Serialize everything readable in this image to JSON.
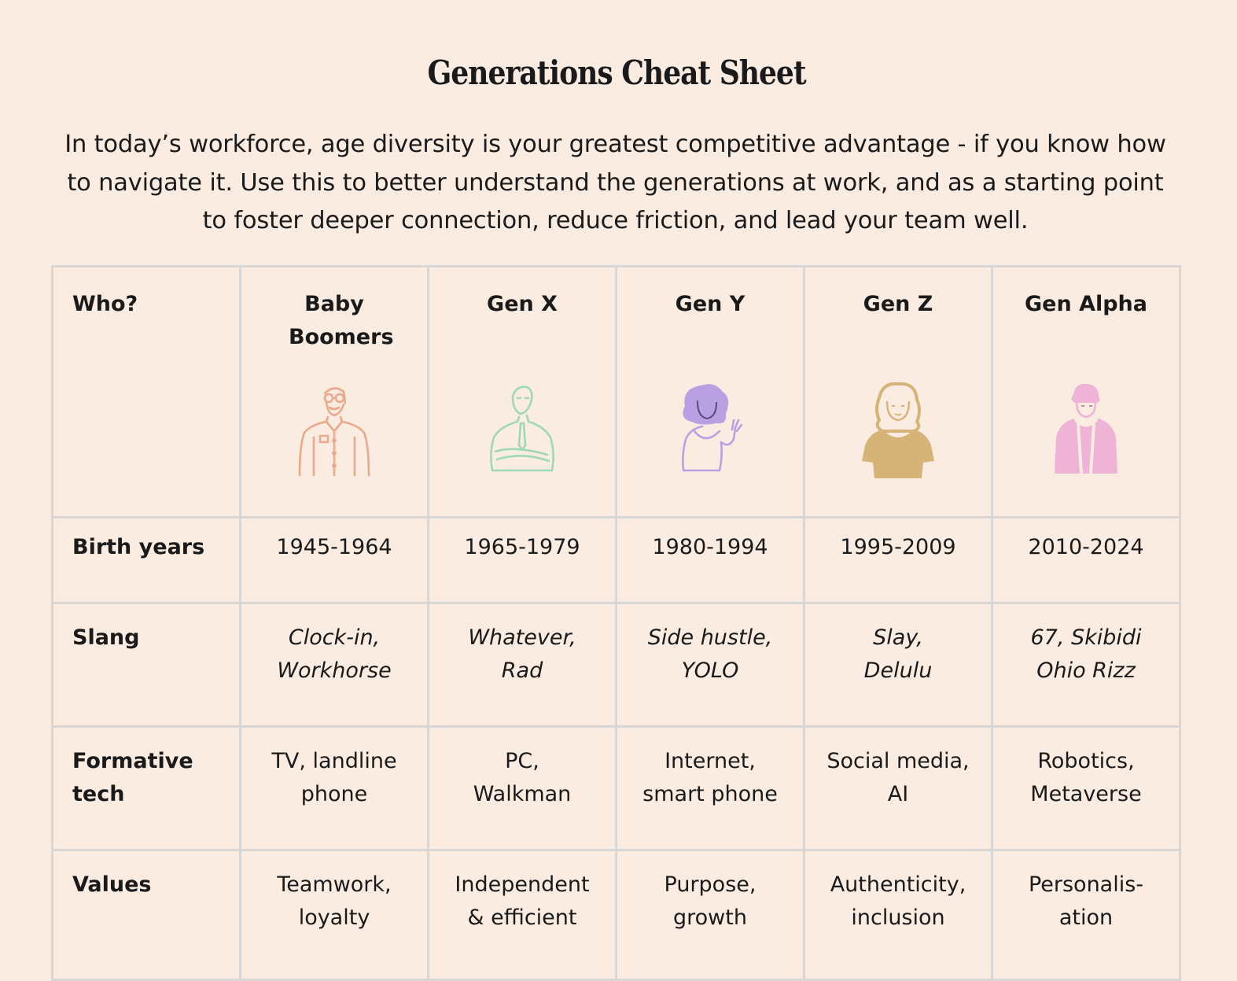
{
  "title": "Generations Cheat Sheet",
  "intro": "In today’s workforce, age diversity is your greatest competitive advantage - if you know how to navigate it. Use this to better understand the generations at work, and as a starting point to foster deeper connection, reduce friction, and lead your team well.",
  "table": {
    "header_label": "Who?",
    "generations": [
      {
        "name": "Baby Boomers",
        "icon": "older-man-glasses-beard-icon",
        "color": "#e9a98a"
      },
      {
        "name": "Gen X",
        "icon": "man-tie-arms-crossed-icon",
        "color": "#9fd9b4"
      },
      {
        "name": "Gen Y",
        "icon": "woman-curly-hair-waving-icon",
        "color": "#b9a0e2"
      },
      {
        "name": "Gen Z",
        "icon": "woman-wavy-hair-tshirt-icon",
        "color": "#d6b478"
      },
      {
        "name": "Gen Alpha",
        "icon": "kid-hoodie-icon",
        "color": "#efb3d6"
      }
    ],
    "rows": [
      {
        "label": "Birth years",
        "values": [
          "1945-1964",
          "1965-1979",
          "1980-1994",
          "1995-2009",
          "2010-2024"
        ]
      },
      {
        "label": "Slang",
        "values": [
          [
            "Clock-in,",
            "Workhorse"
          ],
          [
            "Whatever,",
            "Rad"
          ],
          [
            "Side hustle,",
            "YOLO"
          ],
          [
            "Slay,",
            "Delulu"
          ],
          [
            "67, Skibidi",
            "Ohio Rizz"
          ]
        ]
      },
      {
        "label": [
          "Formative",
          "tech"
        ],
        "values": [
          [
            "TV, landline",
            "phone"
          ],
          [
            "PC,",
            "Walkman"
          ],
          [
            "Internet,",
            "smart phone"
          ],
          [
            "Social media,",
            "AI"
          ],
          [
            "Robotics,",
            "Metaverse"
          ]
        ]
      },
      {
        "label": "Values",
        "values": [
          [
            "Teamwork,",
            "loyalty"
          ],
          [
            "Independent",
            "& efficient"
          ],
          [
            "Purpose,",
            "growth"
          ],
          [
            "Authenticity,",
            "inclusion"
          ],
          [
            "Personalis-",
            "ation"
          ]
        ]
      }
    ]
  }
}
